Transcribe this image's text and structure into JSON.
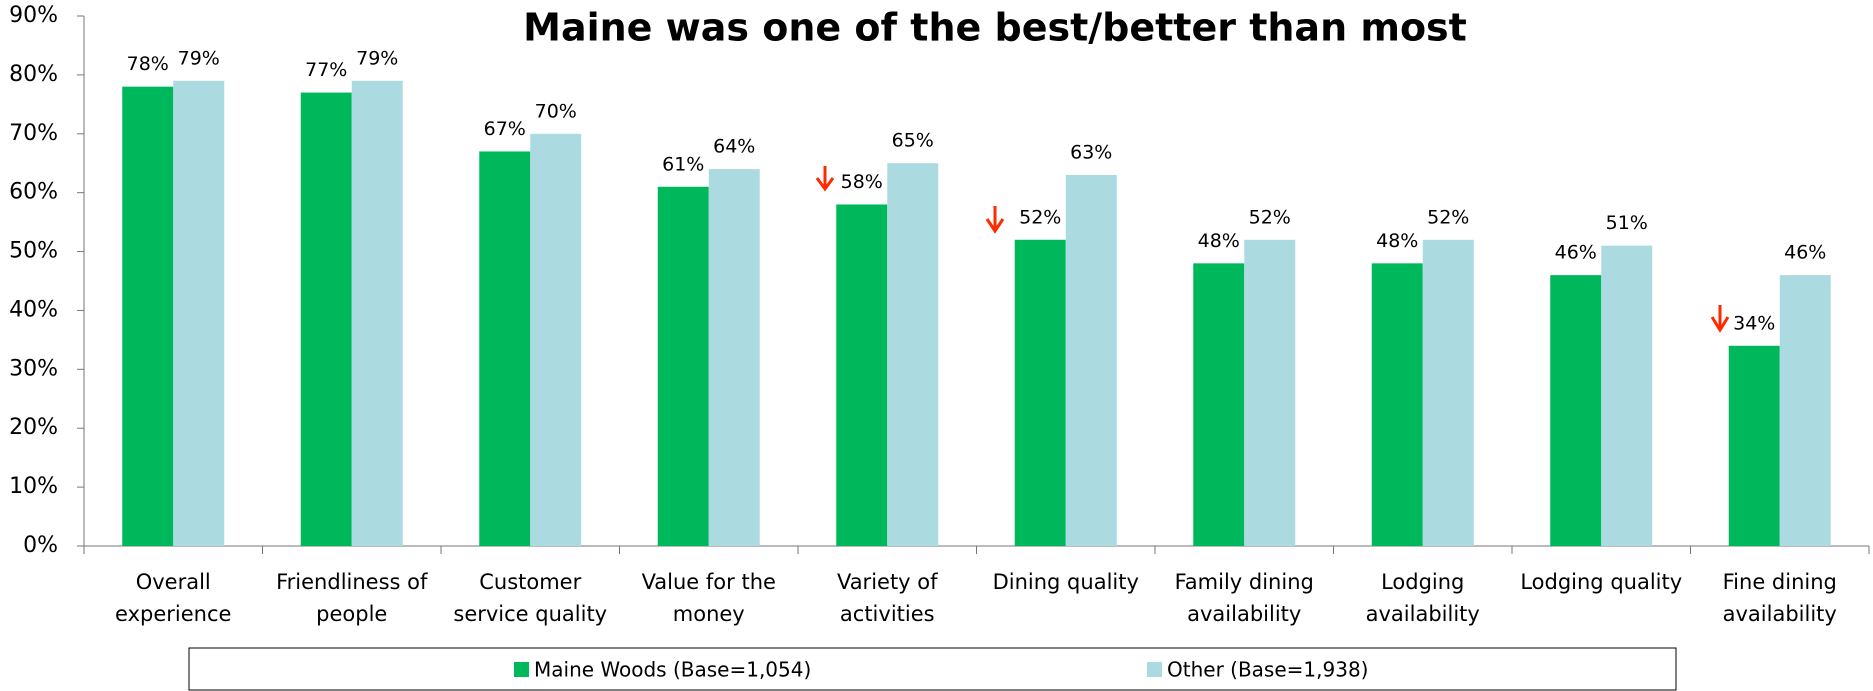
{
  "chart_data": {
    "type": "bar",
    "title": "Maine was one of the best/better than most",
    "categories": [
      "Overall experience",
      "Friendliness of people",
      "Customer service quality",
      "Value for the money",
      "Variety of activities",
      "Dining quality",
      "Family dining availability",
      "Lodging availability",
      "Lodging quality",
      "Fine dining availability"
    ],
    "series": [
      {
        "name": "Maine Woods (Base=1,054)",
        "color": "#00b85c",
        "values": [
          78,
          77,
          67,
          61,
          58,
          52,
          48,
          48,
          46,
          34
        ],
        "value_labels": [
          "78%",
          "77%",
          "67%",
          "61%",
          "58%",
          "52%",
          "48%",
          "48%",
          "46%",
          "34%"
        ]
      },
      {
        "name": "Other (Base=1,938)",
        "color": "#abdbe0",
        "values": [
          79,
          79,
          70,
          64,
          65,
          63,
          52,
          52,
          51,
          46
        ],
        "value_labels": [
          "79%",
          "79%",
          "70%",
          "64%",
          "65%",
          "63%",
          "52%",
          "52%",
          "51%",
          "46%"
        ]
      }
    ],
    "ylim": [
      0,
      90
    ],
    "yticks": [
      {
        "value": 0,
        "label": "0%"
      },
      {
        "value": 10,
        "label": "10%"
      },
      {
        "value": 20,
        "label": "20%"
      },
      {
        "value": 30,
        "label": "30%"
      },
      {
        "value": 40,
        "label": "40%"
      },
      {
        "value": 50,
        "label": "50%"
      },
      {
        "value": 60,
        "label": "60%"
      },
      {
        "value": 70,
        "label": "70%"
      },
      {
        "value": 80,
        "label": "80%"
      },
      {
        "value": 90,
        "label": "90%"
      }
    ],
    "grid": false
  }
}
